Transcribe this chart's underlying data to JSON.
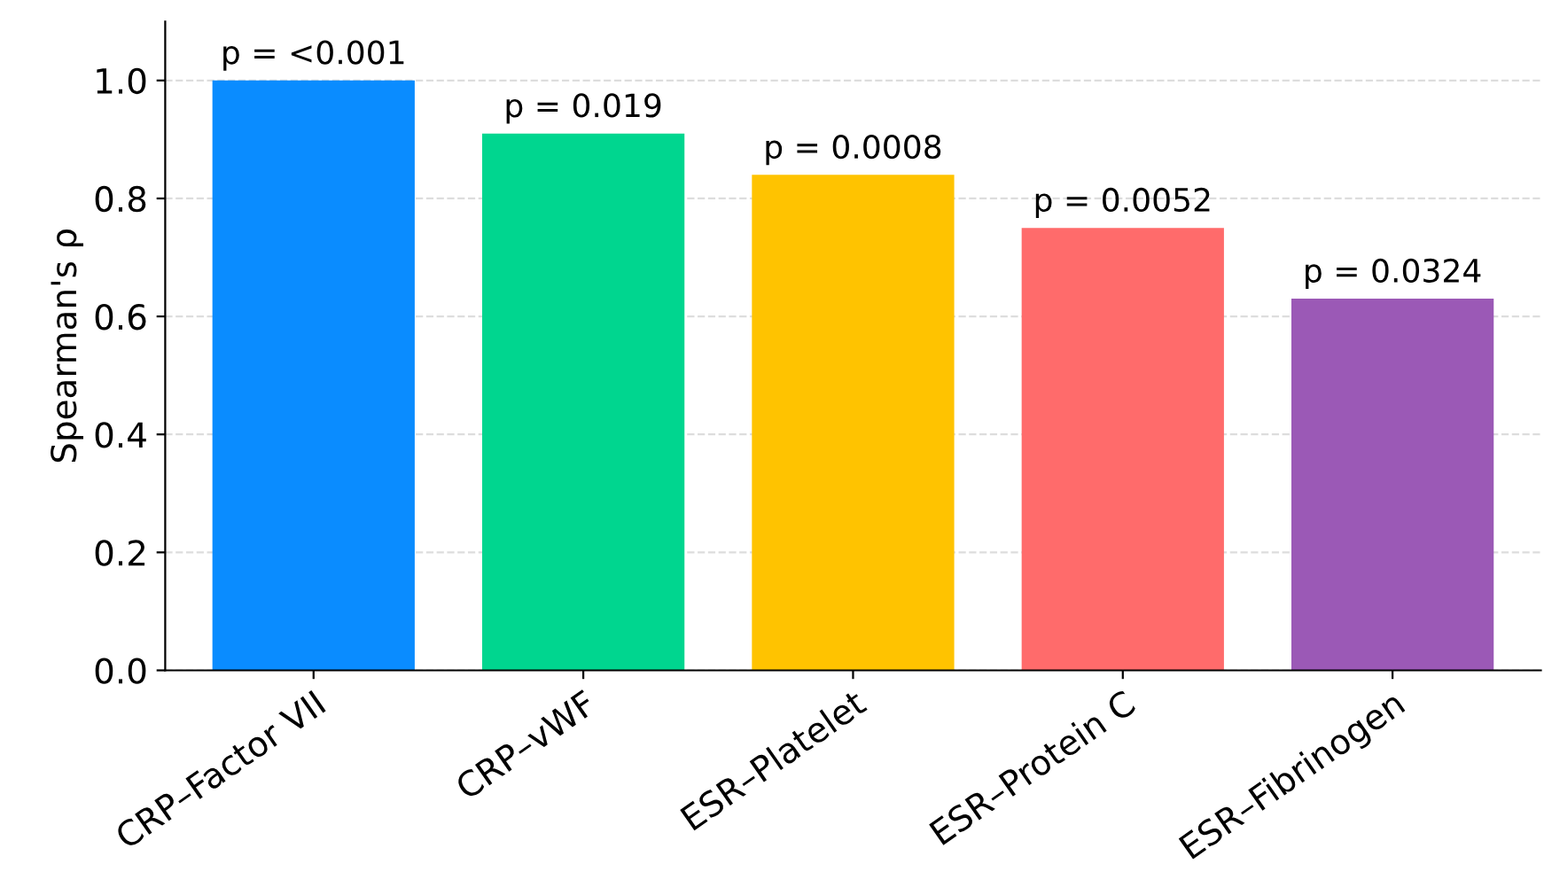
{
  "chart_data": {
    "type": "bar",
    "ylabel": "Spearman's ρ",
    "categories": [
      "CRP–Factor VII",
      "CRP–vWF",
      "ESR–Platelet",
      "ESR–Protein C",
      "ESR–Fibrinogen"
    ],
    "values": [
      1.0,
      0.91,
      0.84,
      0.75,
      0.63
    ],
    "colors": [
      "#0a8cff",
      "#00d68f",
      "#ffc300",
      "#ff6b6b",
      "#9b59b6"
    ],
    "annotations": [
      {
        "text": "p = <0.001",
        "x": "CRP–Factor VII",
        "y": 1.0
      },
      {
        "text": "p = 0.019",
        "x": "CRP–vWF",
        "y": 0.91
      },
      {
        "text": "p = 0.0008",
        "x": "ESR–Platelet",
        "y": 0.84
      },
      {
        "text": "p = 0.0052",
        "x": "ESR–Protein C",
        "y": 0.75
      },
      {
        "text": "p = 0.0324",
        "x": "ESR–Fibrinogen",
        "y": 0.63
      }
    ],
    "ylim": [
      0,
      1.1
    ],
    "yticks": [
      {
        "value": 0,
        "label": "0.0"
      },
      {
        "value": 0.2,
        "label": "0.2"
      },
      {
        "value": 0.4,
        "label": "0.4"
      },
      {
        "value": 0.6,
        "label": "0.6"
      },
      {
        "value": 0.8,
        "label": "0.8"
      },
      {
        "value": 1.0,
        "label": "1.0"
      }
    ],
    "grid": "y"
  }
}
